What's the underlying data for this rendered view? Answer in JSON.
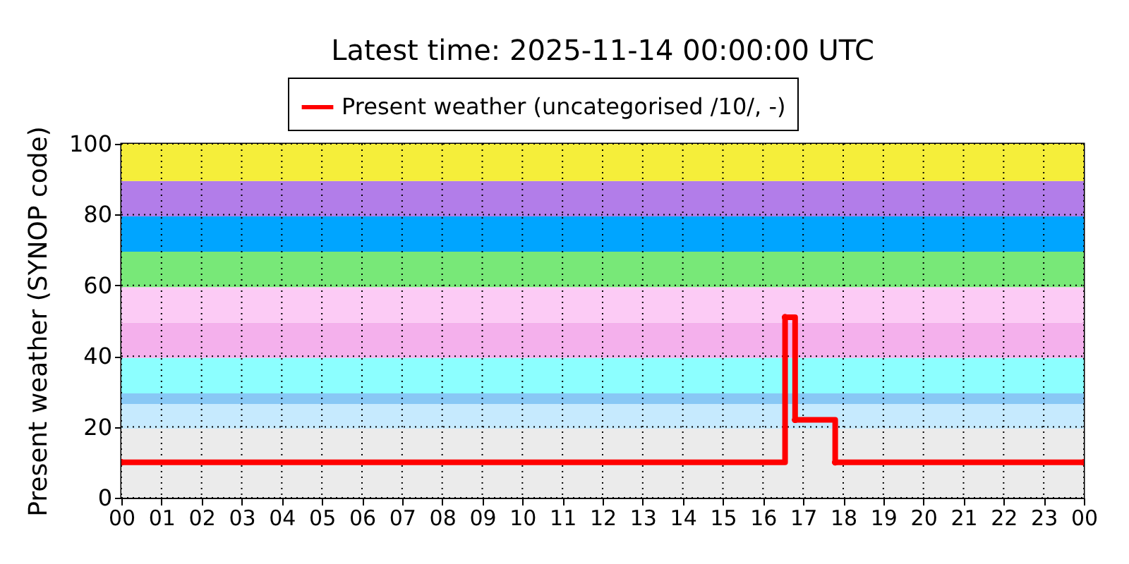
{
  "chart_data": {
    "type": "step",
    "title": "Latest time: 2025-11-14 00:00:00 UTC",
    "ylabel": "Present weather (SYNOP code)",
    "x": [
      0,
      16.55,
      16.8,
      17.8,
      24
    ],
    "series": [
      {
        "name": "Present weather (uncategorised /10/, -)",
        "color": "#ff0000",
        "values": [
          10,
          51,
          22,
          10,
          10
        ]
      }
    ],
    "xlim": [
      0,
      24
    ],
    "ylim": [
      0,
      100
    ],
    "xticks": [
      {
        "value": 0,
        "label": "00"
      },
      {
        "value": 1,
        "label": "01"
      },
      {
        "value": 2,
        "label": "02"
      },
      {
        "value": 3,
        "label": "03"
      },
      {
        "value": 4,
        "label": "04"
      },
      {
        "value": 5,
        "label": "05"
      },
      {
        "value": 6,
        "label": "06"
      },
      {
        "value": 7,
        "label": "07"
      },
      {
        "value": 8,
        "label": "08"
      },
      {
        "value": 9,
        "label": "09"
      },
      {
        "value": 10,
        "label": "10"
      },
      {
        "value": 11,
        "label": "11"
      },
      {
        "value": 12,
        "label": "12"
      },
      {
        "value": 13,
        "label": "13"
      },
      {
        "value": 14,
        "label": "14"
      },
      {
        "value": 15,
        "label": "15"
      },
      {
        "value": 16,
        "label": "16"
      },
      {
        "value": 17,
        "label": "17"
      },
      {
        "value": 18,
        "label": "18"
      },
      {
        "value": 19,
        "label": "19"
      },
      {
        "value": 20,
        "label": "20"
      },
      {
        "value": 21,
        "label": "21"
      },
      {
        "value": 22,
        "label": "22"
      },
      {
        "value": 23,
        "label": "23"
      },
      {
        "value": 24,
        "label": "00"
      }
    ],
    "yticks": [
      0,
      20,
      40,
      60,
      80,
      100
    ],
    "bands": [
      {
        "axis": "y",
        "from": 0,
        "to": 19.5,
        "color": "#ebebeb"
      },
      {
        "axis": "y",
        "from": 19.5,
        "to": 26.5,
        "color": "#c6eafe"
      },
      {
        "axis": "y",
        "from": 26.5,
        "to": 29.5,
        "color": "#88c8f5"
      },
      {
        "axis": "y",
        "from": 29.5,
        "to": 39.5,
        "color": "#8cffff"
      },
      {
        "axis": "y",
        "from": 39.5,
        "to": 49.5,
        "color": "#f4b0ec"
      },
      {
        "axis": "y",
        "from": 49.5,
        "to": 59.5,
        "color": "#fccbf5"
      },
      {
        "axis": "y",
        "from": 59.5,
        "to": 69.5,
        "color": "#78e878"
      },
      {
        "axis": "y",
        "from": 69.5,
        "to": 79.5,
        "color": "#00a5ff"
      },
      {
        "axis": "y",
        "from": 79.5,
        "to": 89.5,
        "color": "#b27de9"
      },
      {
        "axis": "y",
        "from": 89.5,
        "to": 100,
        "color": "#f5ee3a"
      }
    ],
    "grid": true,
    "legend": "top",
    "marker": "circle",
    "line_style": "solid"
  }
}
